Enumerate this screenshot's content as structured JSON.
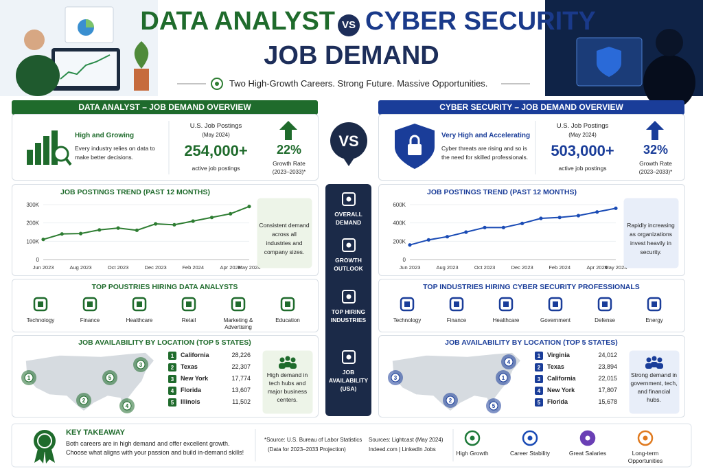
{
  "header": {
    "title_left": "DATA ANALYST",
    "vs": "VS",
    "title_right": "CYBER SECURITY",
    "title_line2": "JOB DEMAND",
    "tagline": "Two High-Growth Careers. Strong Future. Massive Opportunities."
  },
  "left": {
    "overview": {
      "heading": "DATA ANALYST – JOB DEMAND OVERVIEW",
      "status": "High and Growing",
      "desc": "Every industry relies on data to make better decisions.",
      "postings_label": "U.S. Job Postings",
      "postings_date": "(May 2024)",
      "postings": "254,000+",
      "postings_note": "active job postings",
      "growth": "22%",
      "growth_label": "Growth Rate",
      "growth_period": "(2023–2033)*"
    },
    "trend": {
      "title": "JOB POSTINGS TREND (PAST 12 MONTHS)",
      "type": "line",
      "color": "#2e7d32",
      "categories": [
        "Jun 2023",
        null,
        "Aug 2023",
        null,
        "Oct 2023",
        null,
        "Dec 2023",
        null,
        "Feb 2024",
        null,
        "Apr 2024",
        "May 2024"
      ],
      "values": [
        110000,
        140000,
        142000,
        162000,
        172000,
        160000,
        195000,
        190000,
        210000,
        230000,
        250000,
        290000
      ],
      "ylim": [
        0,
        300000
      ],
      "yticks": [
        0,
        {
          "value": 100000,
          "label": "100K"
        },
        {
          "value": 200000,
          "label": "200K"
        },
        {
          "value": 300000,
          "label": "300K"
        }
      ],
      "note": "Consistent demand across all industries and company sizes."
    },
    "industries": {
      "title": "TOP POUSTRIES HIRING DATA ANALYSTS",
      "items": [
        "Technology",
        "Finance",
        "Healthcare",
        "Retail",
        "Marketing & Advertising",
        "Education"
      ]
    },
    "location": {
      "title": "JOB AVAILABILITY BY LOCATION (TOP 5 STATES)",
      "states": [
        {
          "rank": 1,
          "name": "California",
          "count": "28,226"
        },
        {
          "rank": 2,
          "name": "Texas",
          "count": "22,307"
        },
        {
          "rank": 3,
          "name": "New York",
          "count": "17,774"
        },
        {
          "rank": 4,
          "name": "Florida",
          "count": "13,607"
        },
        {
          "rank": 5,
          "name": "Illinois",
          "count": "11,502"
        }
      ],
      "note": "High demand in tech hubs and major business centers."
    }
  },
  "right": {
    "overview": {
      "heading": "CYBER SECURITY – JOB DEMAND OVERVIEW",
      "status": "Very High and Accelerating",
      "desc": "Cyber threats are rising and so is the need for skilled professionals.",
      "postings_label": "U.S. Job Postings",
      "postings_date": "(May 2024)",
      "postings": "503,000+",
      "postings_note": "active job postings",
      "growth": "32%",
      "growth_label": "Growth Rate",
      "growth_period": "(2023–2033)*"
    },
    "trend": {
      "title": "JOB POSTINGS TREND (PAST 12 MONTHS)",
      "type": "line",
      "color": "#1a4bb5",
      "categories": [
        "Jun 2023",
        null,
        "Aug 2023",
        null,
        "Oct 2023",
        null,
        "Dec 2023",
        null,
        "Feb 2024",
        null,
        "Apr 2024",
        "May 2024"
      ],
      "values": [
        160000,
        215000,
        250000,
        300000,
        350000,
        350000,
        395000,
        450000,
        460000,
        480000,
        520000,
        560000
      ],
      "ylim": [
        0,
        600000
      ],
      "yticks": [
        0,
        {
          "value": 200000,
          "label": "200K"
        },
        {
          "value": 400000,
          "label": "400K"
        },
        {
          "value": 600000,
          "label": "600K"
        }
      ],
      "note": "Rapidly increasing as organizations invest heavily in security."
    },
    "industries": {
      "title": "TOP INDUSTRIES HIRING CYBER SECURITY PROFESSIONALS",
      "items": [
        "Technology",
        "Finance",
        "Healthcare",
        "Government",
        "Defense",
        "Energy"
      ]
    },
    "location": {
      "title": "JOB AVAILABILITY BY LOCATION (TOP 5 STATES)",
      "states": [
        {
          "rank": 1,
          "name": "Virginia",
          "count": "24,012"
        },
        {
          "rank": 2,
          "name": "Texas",
          "count": "23,894"
        },
        {
          "rank": 3,
          "name": "California",
          "count": "22,015"
        },
        {
          "rank": 4,
          "name": "New York",
          "count": "17,807"
        },
        {
          "rank": 5,
          "name": "Florida",
          "count": "15,678"
        }
      ],
      "note": "Strong demand in government, tech, and financial hubs."
    }
  },
  "middle": {
    "vs": "VS",
    "items": [
      "OVERALL DEMAND",
      "GROWTH OUTLOOK",
      "TOP HIRING INDUSTRIES",
      "JOB AVAILABILITY (USA)"
    ]
  },
  "footer": {
    "takeaway_title": "KEY TAKEAWAY",
    "takeaway_text": "Both careers are in high demand and offer excellent growth. Choose what aligns with your passion and build in-demand skills!",
    "source_1": "*Source: U.S. Bureau of Labor Statistics",
    "source_1_note": "(Data for 2023–2033 Projection)",
    "source_2": "Sources: Lightcast (May 2024)",
    "source_2_note": "Indeed.com | LinkedIn Jobs",
    "benefits": [
      "High Growth",
      "Career Stability",
      "Great Salaries",
      "Long-term Opportunities"
    ]
  }
}
